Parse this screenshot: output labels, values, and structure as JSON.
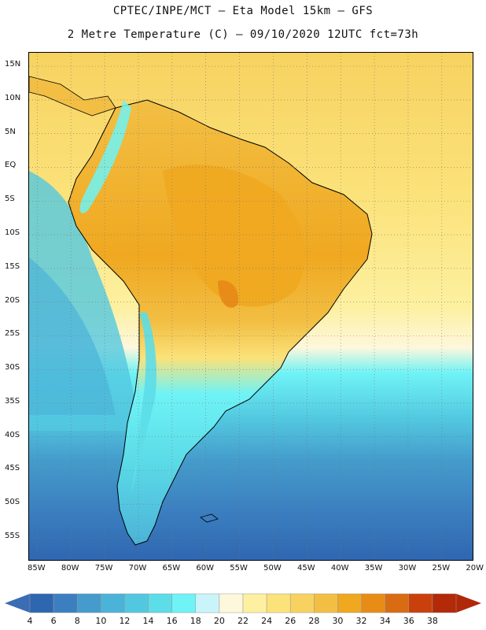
{
  "header": {
    "title_line1": "CPTEC/INPE/MCT –  Eta Model 15km – GFS",
    "title_line2": "2 Metre Temperature (C) – 09/10/2020 12UTC fct=73h"
  },
  "map": {
    "lat_labels": [
      "15N",
      "10N",
      "5N",
      "EQ",
      "5S",
      "10S",
      "15S",
      "20S",
      "25S",
      "30S",
      "35S",
      "40S",
      "45S",
      "50S",
      "55S"
    ],
    "lon_labels": [
      "85W",
      "80W",
      "75W",
      "70W",
      "65W",
      "60W",
      "55W",
      "50W",
      "45W",
      "40W",
      "35W",
      "30W",
      "25W",
      "20W"
    ],
    "lat_range": [
      17,
      -58.5
    ],
    "lon_range": [
      -86.2,
      -20.2
    ],
    "grid": "dotted"
  },
  "colorbar": {
    "labels": [
      "4",
      "6",
      "8",
      "10",
      "12",
      "14",
      "16",
      "18",
      "20",
      "22",
      "24",
      "26",
      "28",
      "30",
      "32",
      "34",
      "36",
      "38"
    ],
    "colors": [
      "#2f66b0",
      "#3b7fc0",
      "#459ccc",
      "#4cb3d8",
      "#52c8e0",
      "#5cdde8",
      "#6ff3f6",
      "#c9f5fa",
      "#fdf7dc",
      "#fdf0a0",
      "#fbe27a",
      "#f7d260",
      "#f2bf44",
      "#f0a820",
      "#e88c18",
      "#d96c12",
      "#c9400c",
      "#b22a08"
    ],
    "under_color": "#3a6db4",
    "over_color": "#b0280a"
  }
}
